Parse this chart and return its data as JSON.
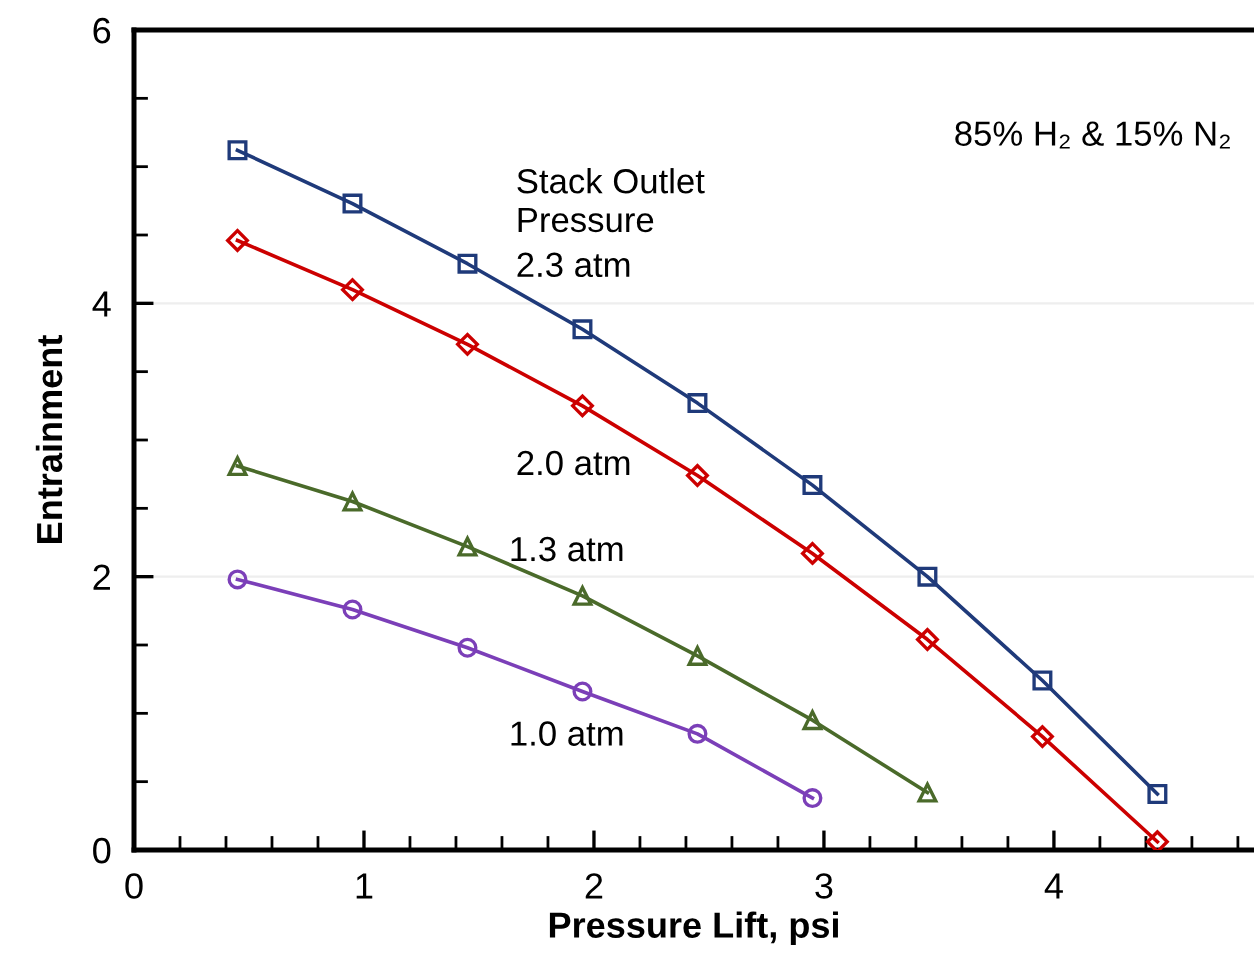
{
  "chart_data": {
    "type": "line",
    "xlabel": "Pressure Lift, psi",
    "ylabel": "Entrainment",
    "annotations": [
      "85% H₂ & 15% N₂",
      "Stack Outlet\nPressure"
    ],
    "xlim": [
      0,
      4.87
    ],
    "xticks": [
      0,
      1,
      2,
      3,
      4
    ],
    "ylim": [
      0,
      6
    ],
    "yticks": [
      0,
      2,
      4,
      6
    ],
    "grid": "y",
    "legend": false,
    "line_style": "solid",
    "series": [
      {
        "name": "2.3 atm",
        "color": "#1f3a7a",
        "marker": "square",
        "x": [
          0.45,
          0.95,
          1.45,
          1.95,
          2.45,
          2.95,
          3.45,
          3.95,
          4.45
        ],
        "values": [
          5.12,
          4.73,
          4.29,
          3.81,
          3.27,
          2.67,
          2.0,
          1.24,
          0.41
        ]
      },
      {
        "name": "2.0 atm",
        "color": "#cc0000",
        "marker": "diamond",
        "x": [
          0.45,
          0.95,
          1.45,
          1.95,
          2.45,
          2.95,
          3.45,
          3.95,
          4.45
        ],
        "values": [
          4.46,
          4.1,
          3.7,
          3.25,
          2.74,
          2.17,
          1.54,
          0.83,
          0.06
        ]
      },
      {
        "name": "1.3 atm",
        "color": "#4a6a2a",
        "marker": "triangle",
        "x": [
          0.45,
          0.95,
          1.45,
          1.95,
          2.45,
          2.95,
          3.45
        ],
        "values": [
          2.81,
          2.55,
          2.22,
          1.86,
          1.42,
          0.95,
          0.42
        ]
      },
      {
        "name": "1.0 atm",
        "color": "#7b3fb8",
        "marker": "circle",
        "x": [
          0.45,
          0.95,
          1.45,
          1.95,
          2.45,
          2.95
        ],
        "values": [
          1.98,
          1.76,
          1.48,
          1.16,
          0.85,
          0.38
        ]
      }
    ]
  }
}
